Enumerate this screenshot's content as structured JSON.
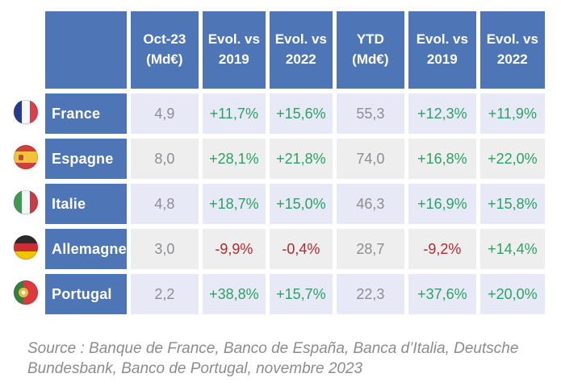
{
  "colors": {
    "header_blue": "#4e76b6",
    "row_lavender": "#e7eaf6",
    "row_gray": "#eeeeee",
    "value_gray": "#8d8d93",
    "positive_green": "#2ca263",
    "negative_red": "#b5282c",
    "source_gray": "#8c8c8c"
  },
  "chart_data": {
    "type": "table",
    "title": "",
    "columns": [
      "Oct-23\n(Md€)",
      "Evol. vs\n2019",
      "Evol. vs\n2022",
      "YTD\n(Md€)",
      "Evol. vs\n2019",
      "Evol. vs\n2022"
    ],
    "rows": [
      {
        "country": "France",
        "flag": "france",
        "values": [
          "4,9",
          "+11,7%",
          "+15,6%",
          "55,3",
          "+12,3%",
          "+11,9%"
        ]
      },
      {
        "country": "Espagne",
        "flag": "espagne",
        "values": [
          "8,0",
          "+28,1%",
          "+21,8%",
          "74,0",
          "+16,8%",
          "+22,0%"
        ]
      },
      {
        "country": "Italie",
        "flag": "italie",
        "values": [
          "4,8",
          "+18,7%",
          "+15,0%",
          "46,3",
          "+16,9%",
          "+15,8%"
        ]
      },
      {
        "country": "Allemagne",
        "flag": "allemagne",
        "values": [
          "3,0",
          "-9,9%",
          "-0,4%",
          "28,7",
          "-9,2%",
          "+14,4%"
        ]
      },
      {
        "country": "Portugal",
        "flag": "portugal",
        "values": [
          "2,2",
          "+38,8%",
          "+15,7%",
          "22,3",
          "+37,6%",
          "+20,0%"
        ]
      }
    ]
  },
  "source": {
    "text": "Source : Banque de France, Banco de España, Banca d’Italia, Deutsche\nBundesbank, Banco de Portugal, novembre 2023"
  }
}
